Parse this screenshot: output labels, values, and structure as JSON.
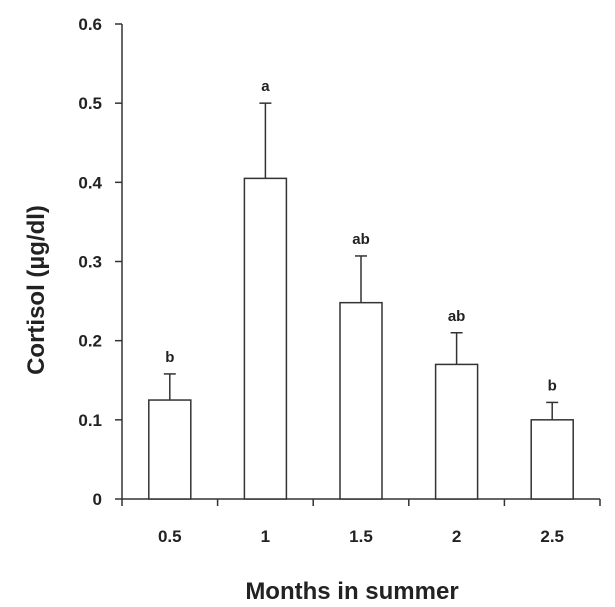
{
  "chart_data": {
    "type": "bar",
    "title": "",
    "xlabel": "Months in summer",
    "ylabel": "Cortisol (µg/dl)",
    "categories": [
      "0.5",
      "1",
      "1.5",
      "2",
      "2.5"
    ],
    "values": [
      0.125,
      0.405,
      0.248,
      0.17,
      0.1
    ],
    "error_upper": [
      0.158,
      0.5,
      0.307,
      0.21,
      0.122
    ],
    "significance": [
      "b",
      "a",
      "ab",
      "ab",
      "b"
    ],
    "ylim": [
      0,
      0.6
    ],
    "yticks": [
      "0",
      "0.1",
      "0.2",
      "0.3",
      "0.4",
      "0.5",
      "0.6"
    ],
    "grid": false,
    "bar_fill": "#ffffff",
    "bar_stroke": "#333333"
  }
}
